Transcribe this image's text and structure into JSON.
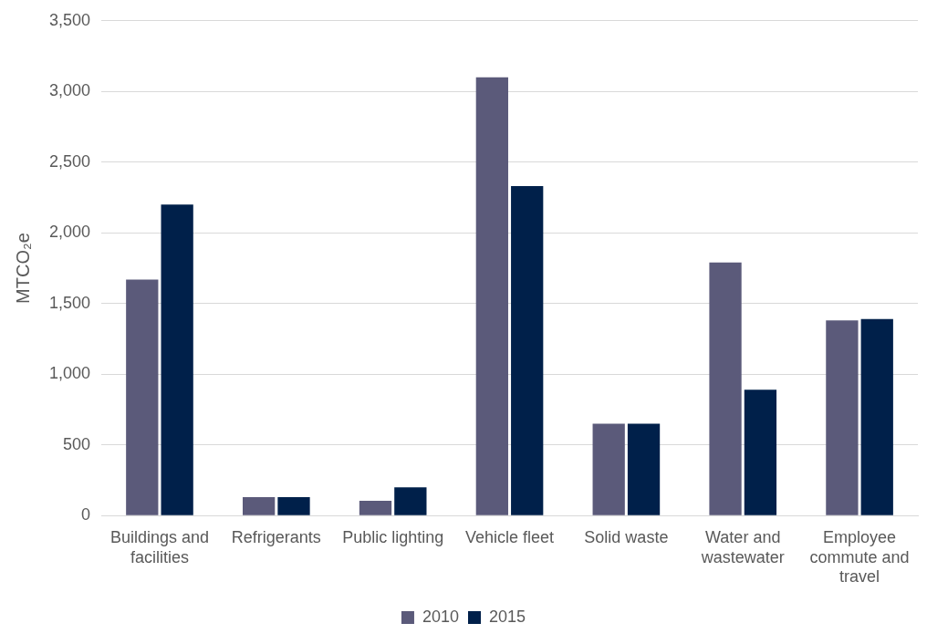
{
  "chart_data": {
    "type": "bar",
    "ylabel": "MTCO₂e",
    "categories": [
      "Buildings and facilities",
      "Refrigerants",
      "Public lighting",
      "Vehicle fleet",
      "Solid waste",
      "Water and wastewater",
      "Employee commute and travel"
    ],
    "series": [
      {
        "name": "2010",
        "color": "#5b5a7a",
        "values": [
          1670,
          130,
          105,
          3100,
          650,
          1790,
          1380
        ]
      },
      {
        "name": "2015",
        "color": "#00204a",
        "values": [
          2200,
          130,
          200,
          2330,
          650,
          890,
          1390
        ]
      }
    ],
    "ylim": [
      0,
      3500
    ],
    "yticks": [
      {
        "value": 0,
        "label": "0"
      },
      {
        "value": 500,
        "label": "500"
      },
      {
        "value": 1000,
        "label": "1,000"
      },
      {
        "value": 1500,
        "label": "1,500"
      },
      {
        "value": 2000,
        "label": "2,000"
      },
      {
        "value": 2500,
        "label": "2,500"
      },
      {
        "value": 3000,
        "label": "3,000"
      },
      {
        "value": 3500,
        "label": "3,500"
      }
    ],
    "grid": "y",
    "legend": "bottom"
  }
}
